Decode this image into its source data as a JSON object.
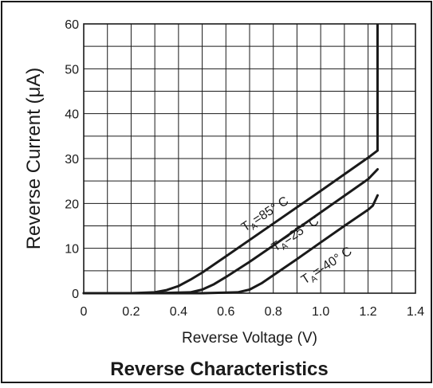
{
  "chart_data": {
    "type": "line",
    "title": "Reverse Characteristics",
    "xlabel": "Reverse Voltage (V)",
    "ylabel": "Reverse Current (μA)",
    "xlim": [
      0,
      1.4
    ],
    "ylim": [
      0,
      60
    ],
    "xticks": [
      "0",
      "0.2",
      "0.4",
      "0.6",
      "0.8",
      "1.0",
      "1.2",
      "1.4"
    ],
    "yticks": [
      "0",
      "10",
      "20",
      "30",
      "40",
      "50",
      "60"
    ],
    "grid": true,
    "series": [
      {
        "name": "TA=85° C",
        "label_main": "T",
        "label_sub": "A",
        "label_rest": "=85° C",
        "x": [
          0,
          0.2,
          0.3,
          0.35,
          0.4,
          0.45,
          0.5,
          0.6,
          0.8,
          1.0,
          1.2,
          1.24
        ],
        "y": [
          0,
          0,
          0.2,
          0.7,
          1.6,
          3.0,
          4.6,
          8.2,
          15.5,
          22.8,
          30.2,
          31.8
        ]
      },
      {
        "name": "TA=25° C",
        "label_main": "T",
        "label_sub": "A",
        "label_rest": "=25° C",
        "x": [
          0,
          0.3,
          0.45,
          0.5,
          0.55,
          0.6,
          0.7,
          0.8,
          1.0,
          1.2,
          1.24
        ],
        "y": [
          0,
          0,
          0.2,
          0.8,
          2.0,
          3.6,
          7.0,
          10.6,
          18.0,
          25.4,
          27.6
        ]
      },
      {
        "name": "TA=-40° C",
        "label_main": "T",
        "label_sub": "A",
        "label_rest": "=-40° C",
        "x": [
          0,
          0.5,
          0.65,
          0.7,
          0.75,
          0.8,
          0.9,
          1.0,
          1.1,
          1.2,
          1.22,
          1.24
        ],
        "y": [
          0,
          0,
          0.2,
          0.8,
          2.2,
          4.0,
          7.6,
          11.3,
          15.0,
          18.6,
          19.5,
          21.8
        ]
      }
    ],
    "vertical_limit": {
      "x": 1.24,
      "y_end": 60
    }
  }
}
